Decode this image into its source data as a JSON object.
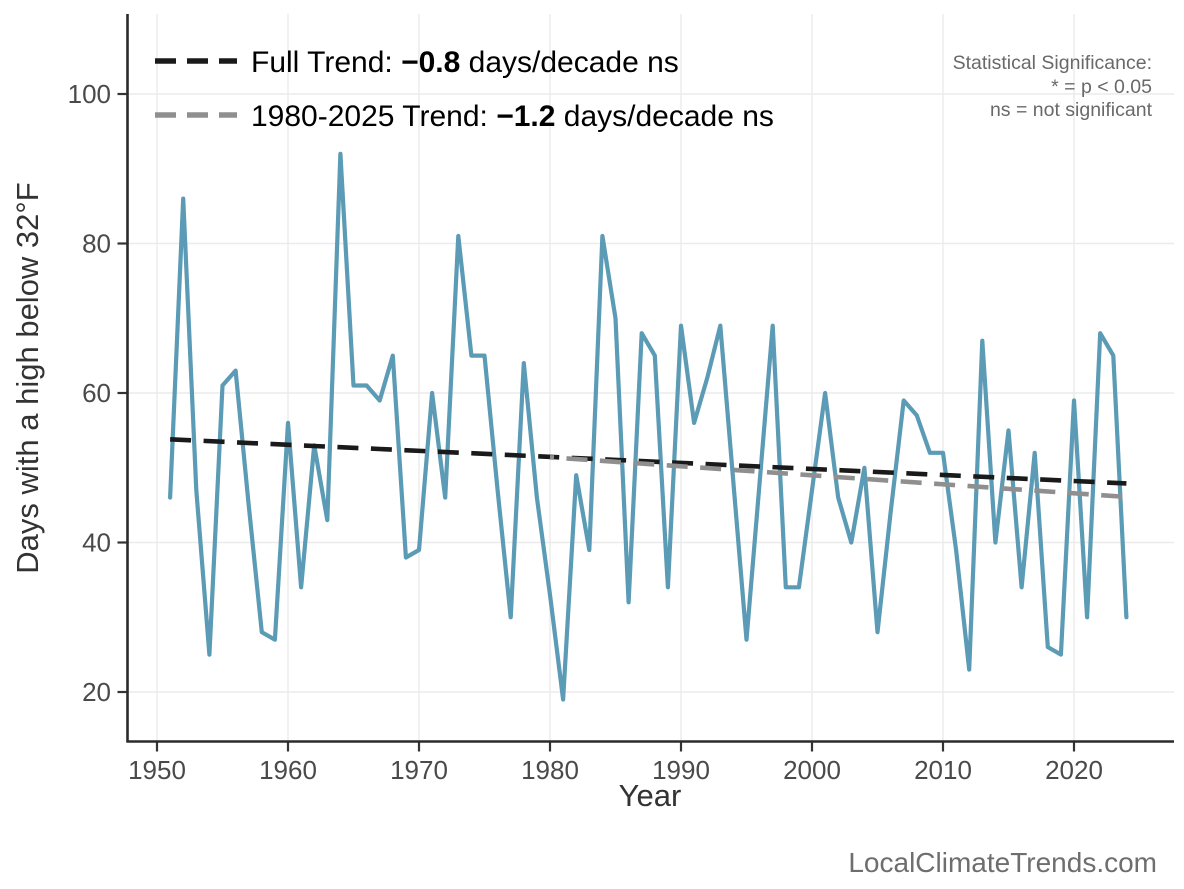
{
  "chart_data": {
    "type": "line",
    "title": "",
    "xlabel": "Year",
    "ylabel": "Days with a high below 32°F",
    "x_ticks": [
      1950,
      1960,
      1970,
      1980,
      1990,
      2000,
      2010,
      2020
    ],
    "y_ticks": [
      20,
      40,
      60,
      80,
      100
    ],
    "xlim": [
      1947.7,
      2027.6
    ],
    "ylim": [
      13.3,
      110.7
    ],
    "grid": true,
    "legend_position": "top-left",
    "series": [
      {
        "name": "annual-days-below-32F",
        "color": "#5B9BB5",
        "x_start": 1951,
        "x_end": 2024,
        "values": [
          46,
          86,
          47,
          25,
          61,
          63,
          45,
          28,
          27,
          56,
          34,
          53,
          43,
          92,
          61,
          61,
          59,
          65,
          38,
          39,
          60,
          46,
          81,
          65,
          65,
          47,
          30,
          64,
          46,
          33,
          19,
          49,
          39,
          81,
          70,
          32,
          68,
          65,
          34,
          69,
          56,
          62,
          69,
          48,
          27,
          48,
          69,
          34,
          34,
          47,
          60,
          46,
          40,
          50,
          28,
          44,
          59,
          57,
          52,
          52,
          39,
          23,
          67,
          40,
          55,
          34,
          52,
          26,
          25,
          59,
          30,
          68,
          65,
          30
        ]
      }
    ],
    "trends": [
      {
        "name": "full-trend",
        "label": "Full Trend: ",
        "value": "−0.8",
        "suffix": " days/decade ns",
        "color": "#1A1A1A",
        "x1": 1951,
        "v1": 53.8,
        "x2": 2024,
        "v2": 47.9
      },
      {
        "name": "recent-trend",
        "label": "1980-2025 Trend: ",
        "value": "−1.2",
        "suffix": " days/decade ns",
        "color": "#8F8F8F",
        "x1": 1980,
        "v1": 51.4,
        "x2": 2024,
        "v2": 46.1
      }
    ]
  },
  "annotations": {
    "stat_note_line1": "Statistical Significance:",
    "stat_note_line2": "* = p < 0.05",
    "stat_note_line3": "ns = not significant"
  },
  "footer": {
    "brand": "LocalClimateTrends.com"
  },
  "colors": {
    "series_line": "#5B9BB5",
    "trend_full": "#1A1A1A",
    "trend_recent": "#8F8F8F",
    "grid": "#EBEBEB",
    "axis": "#333333",
    "tick_label": "#4A4A4A",
    "legend_text": "#000000",
    "note_text": "#696969",
    "footer_text": "#6E6E6E"
  }
}
